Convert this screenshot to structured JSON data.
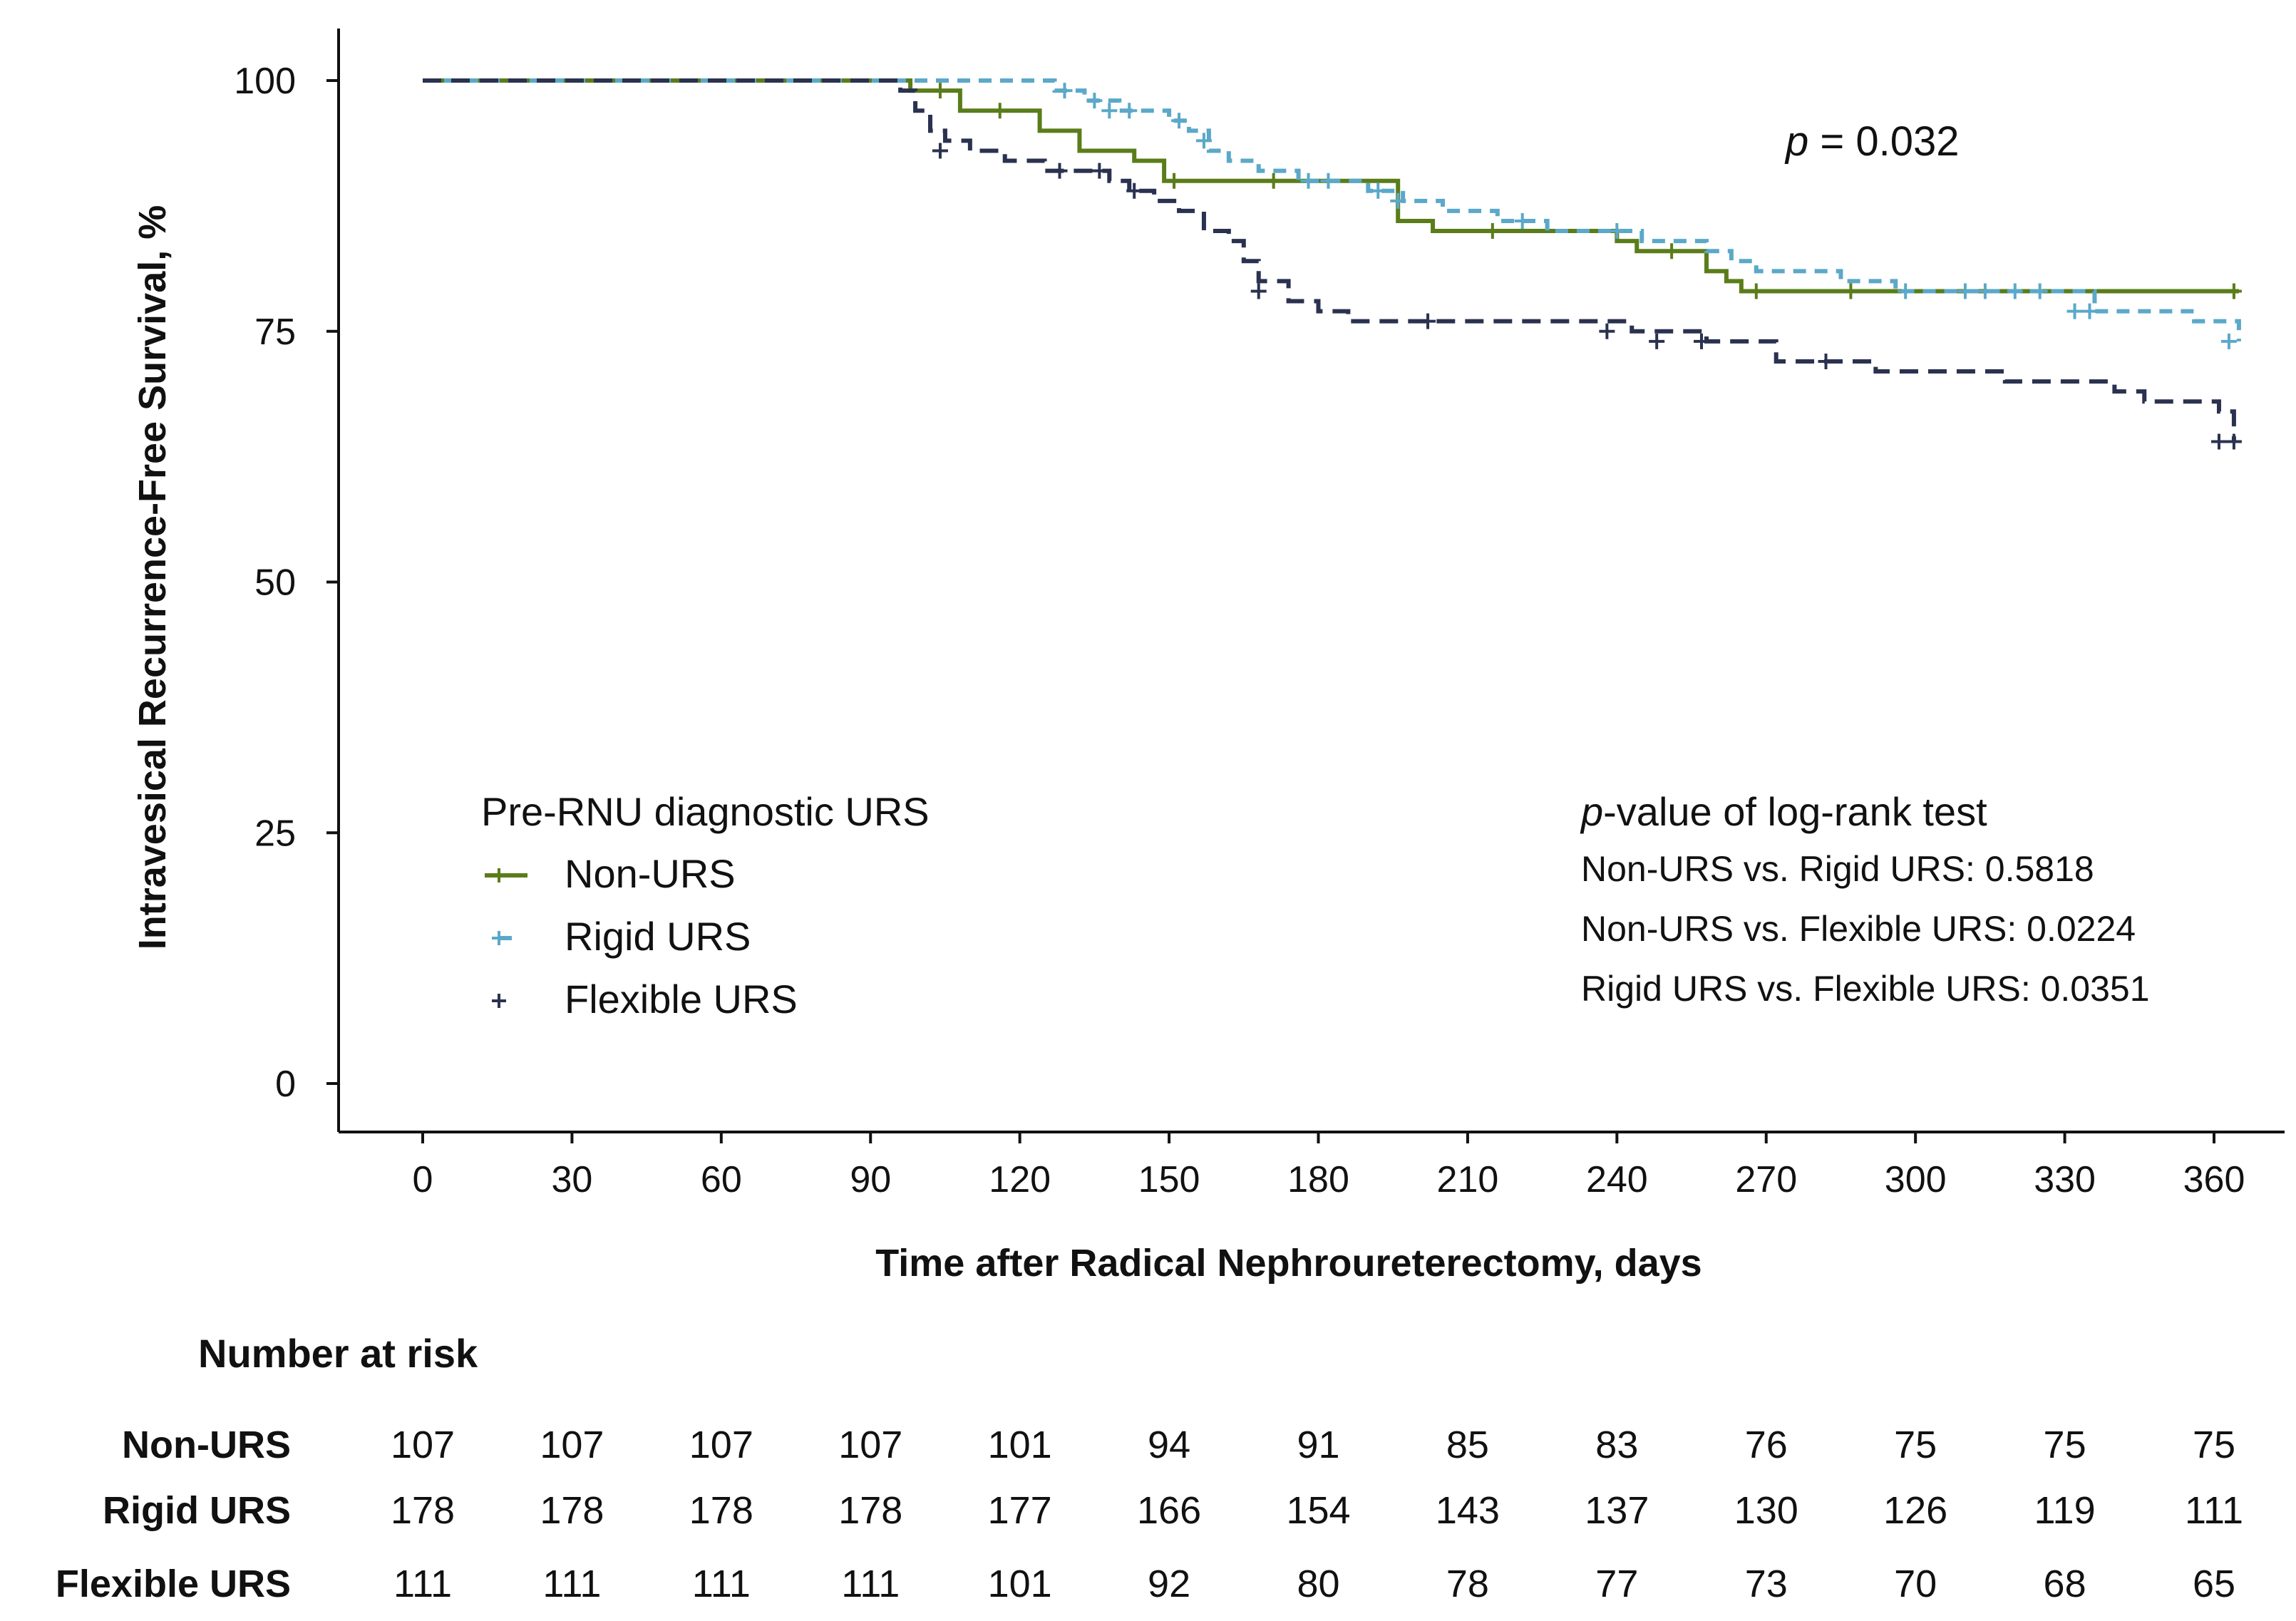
{
  "chart_data": {
    "type": "line",
    "subtype": "kaplan-meier",
    "xlabel": "Time after Radical Nephroureterectomy, days",
    "ylabel": "Intravesical Recurrence-Free Survival, %",
    "xlim": [
      0,
      360
    ],
    "ylim": [
      0,
      100
    ],
    "x_ticks": [
      0,
      30,
      60,
      90,
      120,
      150,
      180,
      210,
      240,
      270,
      300,
      330,
      360
    ],
    "y_ticks": [
      0,
      25,
      50,
      75,
      100
    ],
    "grid": false,
    "legend": {
      "title": "Pre-RNU diagnostic URS",
      "position": "bottom-left"
    },
    "annotation": {
      "italic": "p",
      "rest": " = 0.032"
    },
    "pvalues": {
      "title_italic": "p",
      "title_rest": "-value of log-rank test",
      "lines": [
        "Non-URS vs. Rigid URS:  0.5818",
        "Non-URS vs. Flexible URS:  0.0224",
        "Rigid URS vs. Flexible URS: 0.0351"
      ]
    },
    "series": [
      {
        "name": "Non-URS",
        "color": "#5a7d1a",
        "style": "solid",
        "steps": [
          [
            0,
            100
          ],
          [
            95,
            100
          ],
          [
            98,
            99
          ],
          [
            108,
            97
          ],
          [
            118,
            97
          ],
          [
            124,
            95
          ],
          [
            132,
            93
          ],
          [
            143,
            92
          ],
          [
            149,
            90
          ],
          [
            179,
            90
          ],
          [
            196,
            86
          ],
          [
            200,
            86
          ],
          [
            203,
            85
          ],
          [
            230,
            85
          ],
          [
            240,
            84
          ],
          [
            244,
            83
          ],
          [
            255,
            83
          ],
          [
            258,
            81
          ],
          [
            262,
            80
          ],
          [
            265,
            79
          ],
          [
            365,
            79
          ]
        ],
        "censored": [
          [
            104,
            99
          ],
          [
            116,
            97
          ],
          [
            151,
            90
          ],
          [
            171,
            90
          ],
          [
            215,
            85
          ],
          [
            251,
            83
          ],
          [
            268,
            79
          ],
          [
            287,
            79
          ],
          [
            364,
            79
          ]
        ]
      },
      {
        "name": "Rigid URS",
        "color": "#5ba8c9",
        "style": "dashed",
        "steps": [
          [
            0,
            100
          ],
          [
            123,
            100
          ],
          [
            127,
            99
          ],
          [
            133,
            98
          ],
          [
            140,
            97
          ],
          [
            146,
            97
          ],
          [
            150,
            96
          ],
          [
            154,
            95
          ],
          [
            158,
            93
          ],
          [
            162,
            92
          ],
          [
            168,
            91
          ],
          [
            176,
            90
          ],
          [
            186,
            90
          ],
          [
            190,
            89
          ],
          [
            197,
            88
          ],
          [
            205,
            87
          ],
          [
            216,
            86
          ],
          [
            226,
            85
          ],
          [
            241,
            85
          ],
          [
            245,
            84
          ],
          [
            258,
            83
          ],
          [
            263,
            82
          ],
          [
            268,
            81
          ],
          [
            285,
            80
          ],
          [
            296,
            79
          ],
          [
            330,
            79
          ],
          [
            336,
            77
          ],
          [
            352,
            77
          ],
          [
            356,
            76
          ],
          [
            365,
            74
          ]
        ],
        "censored": [
          [
            129,
            99
          ],
          [
            135,
            98
          ],
          [
            138,
            97
          ],
          [
            142,
            97
          ],
          [
            152,
            96
          ],
          [
            157,
            94
          ],
          [
            178,
            90
          ],
          [
            182,
            90
          ],
          [
            192,
            89
          ],
          [
            196,
            88
          ],
          [
            221,
            86
          ],
          [
            240,
            85
          ],
          [
            298,
            79
          ],
          [
            310,
            79
          ],
          [
            314,
            79
          ],
          [
            320,
            79
          ],
          [
            325,
            79
          ],
          [
            332,
            77
          ],
          [
            335,
            77
          ],
          [
            363,
            74
          ]
        ]
      },
      {
        "name": "Flexible URS",
        "color": "#2b3250",
        "style": "dashed",
        "steps": [
          [
            0,
            100
          ],
          [
            93,
            100
          ],
          [
            96,
            99
          ],
          [
            99,
            97
          ],
          [
            102,
            95
          ],
          [
            105,
            94
          ],
          [
            110,
            93
          ],
          [
            117,
            92
          ],
          [
            125,
            91
          ],
          [
            134,
            91
          ],
          [
            138,
            90
          ],
          [
            142,
            89
          ],
          [
            147,
            88
          ],
          [
            152,
            87
          ],
          [
            157,
            85
          ],
          [
            162,
            84
          ],
          [
            165,
            82
          ],
          [
            168,
            80
          ],
          [
            174,
            78
          ],
          [
            180,
            77
          ],
          [
            186,
            76
          ],
          [
            223,
            76
          ],
          [
            230,
            76
          ],
          [
            243,
            75
          ],
          [
            253,
            75
          ],
          [
            258,
            74
          ],
          [
            267,
            74
          ],
          [
            272,
            72
          ],
          [
            286,
            72
          ],
          [
            292,
            71
          ],
          [
            310,
            71
          ],
          [
            318,
            70
          ],
          [
            334,
            70
          ],
          [
            340,
            69
          ],
          [
            346,
            68
          ],
          [
            358,
            68
          ],
          [
            361,
            67
          ],
          [
            364,
            64
          ]
        ],
        "censored": [
          [
            104,
            93
          ],
          [
            128,
            91
          ],
          [
            136,
            91
          ],
          [
            143,
            89
          ],
          [
            168,
            79
          ],
          [
            202,
            76
          ],
          [
            238,
            75
          ],
          [
            248,
            74
          ],
          [
            257,
            74
          ],
          [
            282,
            72
          ],
          [
            361,
            64
          ],
          [
            364,
            64
          ]
        ]
      }
    ],
    "risk_table": {
      "title": "Number at risk",
      "times": [
        0,
        30,
        60,
        90,
        120,
        150,
        180,
        210,
        240,
        270,
        300,
        330,
        360
      ],
      "rows": [
        {
          "name": "Non-URS",
          "values": [
            107,
            107,
            107,
            107,
            101,
            94,
            91,
            85,
            83,
            76,
            75,
            75,
            75
          ]
        },
        {
          "name": "Rigid URS",
          "values": [
            178,
            178,
            178,
            178,
            177,
            166,
            154,
            143,
            137,
            130,
            126,
            119,
            111
          ]
        },
        {
          "name": "Flexible URS",
          "values": [
            111,
            111,
            111,
            111,
            101,
            92,
            80,
            78,
            77,
            73,
            70,
            68,
            65
          ]
        }
      ]
    }
  }
}
